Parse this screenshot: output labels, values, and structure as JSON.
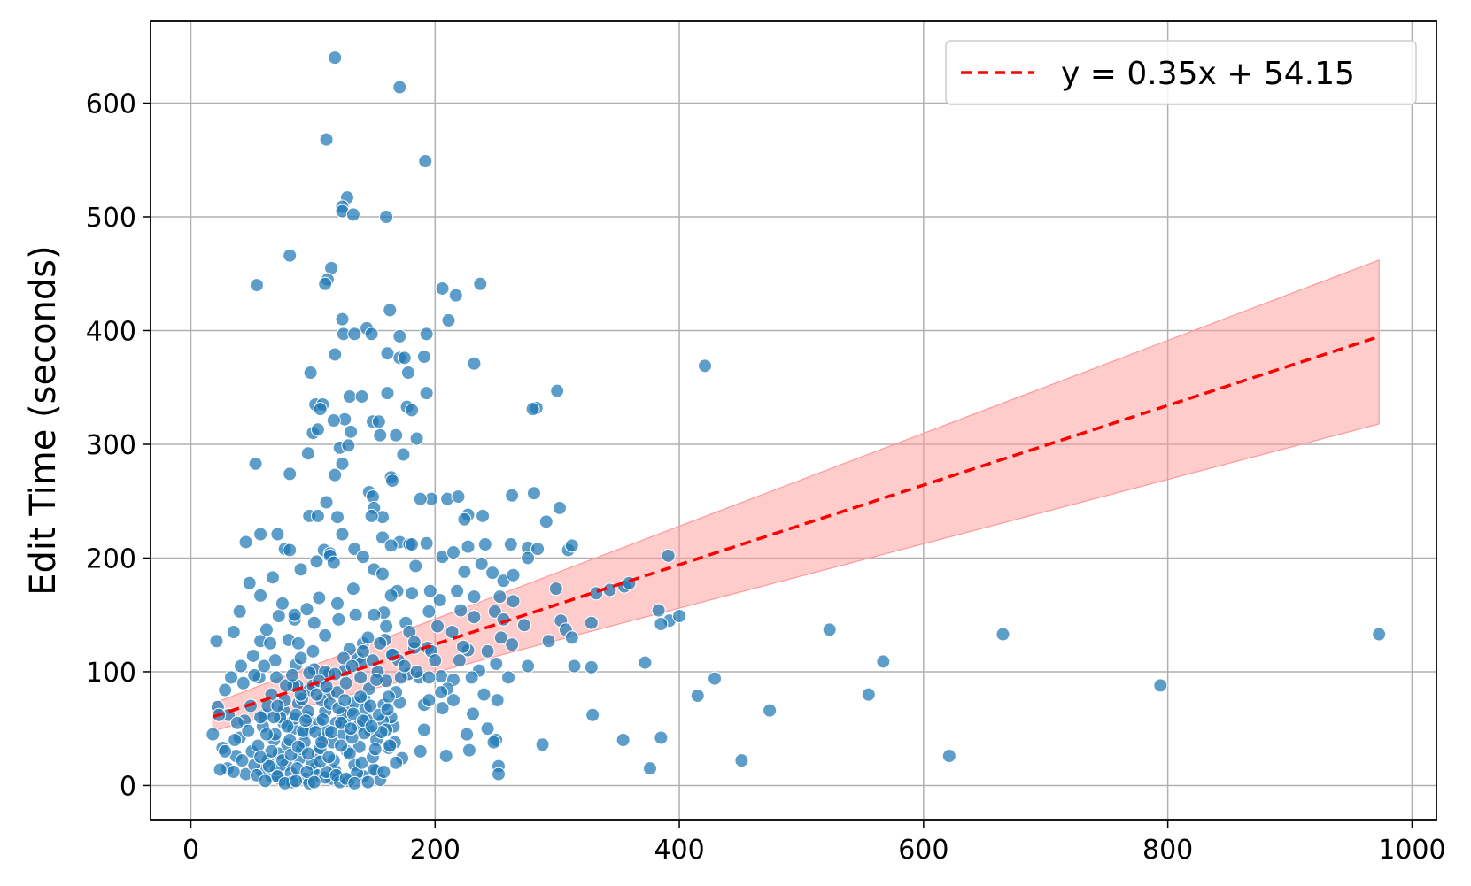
{
  "chart_data": {
    "type": "scatter",
    "title": "",
    "xlabel": "",
    "ylabel": "Edit Time (seconds)",
    "xlim": [
      -33,
      1020
    ],
    "ylim": [
      -30,
      672
    ],
    "xticks": [
      "0",
      "200",
      "400",
      "600",
      "800",
      "1000"
    ],
    "yticks": [
      "0",
      "100",
      "200",
      "300",
      "400",
      "500",
      "600"
    ],
    "grid": true,
    "legend_position": "top-right",
    "colors": {
      "points": "#1f77b4",
      "fit_line": "#ff0000",
      "band": "#ff9999"
    },
    "fit": {
      "label": "y = 0.35x + 54.15",
      "slope": 0.35,
      "intercept": 54.15,
      "x_range": [
        18,
        973
      ],
      "band_lower": [
        [
          18,
          48
        ],
        [
          973,
          318
        ]
      ],
      "band_upper": [
        [
          18,
          72
        ],
        [
          973,
          462
        ]
      ]
    },
    "points": [
      [
        118,
        640
      ],
      [
        171,
        614
      ],
      [
        111,
        568
      ],
      [
        192,
        549
      ],
      [
        128,
        517
      ],
      [
        124,
        509
      ],
      [
        124,
        505
      ],
      [
        133,
        502
      ],
      [
        160,
        500
      ],
      [
        81,
        466
      ],
      [
        115,
        455
      ],
      [
        112,
        445
      ],
      [
        110,
        441
      ],
      [
        54,
        440
      ],
      [
        206,
        437
      ],
      [
        237,
        441
      ],
      [
        217,
        431
      ],
      [
        163,
        418
      ],
      [
        124,
        410
      ],
      [
        211,
        409
      ],
      [
        144,
        402
      ],
      [
        125,
        397
      ],
      [
        134,
        397
      ],
      [
        148,
        397
      ],
      [
        193,
        397
      ],
      [
        171,
        395
      ],
      [
        161,
        380
      ],
      [
        118,
        379
      ],
      [
        171,
        376
      ],
      [
        175,
        376
      ],
      [
        191,
        377
      ],
      [
        232,
        371
      ],
      [
        421,
        369
      ],
      [
        98,
        363
      ],
      [
        178,
        363
      ],
      [
        161,
        345
      ],
      [
        193,
        345
      ],
      [
        300,
        347
      ],
      [
        130,
        342
      ],
      [
        140,
        342
      ],
      [
        102,
        335
      ],
      [
        108,
        335
      ],
      [
        177,
        333
      ],
      [
        283,
        332
      ],
      [
        280,
        331
      ],
      [
        181,
        330
      ],
      [
        106,
        331
      ],
      [
        126,
        322
      ],
      [
        149,
        320
      ],
      [
        117,
        321
      ],
      [
        154,
        320
      ],
      [
        131,
        311
      ],
      [
        100,
        310
      ],
      [
        104,
        313
      ],
      [
        168,
        308
      ],
      [
        155,
        308
      ],
      [
        185,
        305
      ],
      [
        122,
        297
      ],
      [
        129,
        299
      ],
      [
        96,
        292
      ],
      [
        174,
        291
      ],
      [
        124,
        283
      ],
      [
        53,
        283
      ],
      [
        81,
        274
      ],
      [
        118,
        273
      ],
      [
        164,
        271
      ],
      [
        165,
        268
      ],
      [
        146,
        258
      ],
      [
        197,
        252
      ],
      [
        210,
        252
      ],
      [
        219,
        254
      ],
      [
        188,
        252
      ],
      [
        263,
        255
      ],
      [
        281,
        257
      ],
      [
        149,
        254
      ],
      [
        111,
        249
      ],
      [
        150,
        244
      ],
      [
        302,
        244
      ],
      [
        97,
        237
      ],
      [
        104,
        237
      ],
      [
        120,
        236
      ],
      [
        157,
        236
      ],
      [
        227,
        238
      ],
      [
        239,
        237
      ],
      [
        148,
        237
      ],
      [
        224,
        234
      ],
      [
        291,
        232
      ],
      [
        57,
        221
      ],
      [
        71,
        221
      ],
      [
        124,
        221
      ],
      [
        157,
        218
      ],
      [
        171,
        214
      ],
      [
        179,
        212
      ],
      [
        193,
        213
      ],
      [
        227,
        210
      ],
      [
        241,
        212
      ],
      [
        262,
        212
      ],
      [
        276,
        209
      ],
      [
        284,
        208
      ],
      [
        309,
        207
      ],
      [
        312,
        211
      ],
      [
        45,
        214
      ],
      [
        77,
        208
      ],
      [
        81,
        207
      ],
      [
        109,
        207
      ],
      [
        114,
        204
      ],
      [
        134,
        208
      ],
      [
        164,
        211
      ],
      [
        181,
        212
      ],
      [
        103,
        197
      ],
      [
        114,
        202
      ],
      [
        117,
        196
      ],
      [
        141,
        201
      ],
      [
        184,
        193
      ],
      [
        206,
        201
      ],
      [
        215,
        205
      ],
      [
        224,
        188
      ],
      [
        238,
        195
      ],
      [
        247,
        187
      ],
      [
        256,
        180
      ],
      [
        264,
        185
      ],
      [
        276,
        200
      ],
      [
        391,
        202
      ],
      [
        48,
        178
      ],
      [
        67,
        183
      ],
      [
        90,
        190
      ],
      [
        150,
        190
      ],
      [
        157,
        186
      ],
      [
        169,
        171
      ],
      [
        181,
        169
      ],
      [
        196,
        171
      ],
      [
        204,
        163
      ],
      [
        218,
        171
      ],
      [
        232,
        166
      ],
      [
        253,
        166
      ],
      [
        264,
        162
      ],
      [
        299,
        173
      ],
      [
        332,
        169
      ],
      [
        343,
        172
      ],
      [
        355,
        175
      ],
      [
        359,
        178
      ],
      [
        133,
        173
      ],
      [
        164,
        167
      ],
      [
        57,
        167
      ],
      [
        40,
        153
      ],
      [
        72,
        149
      ],
      [
        85,
        146
      ],
      [
        101,
        143
      ],
      [
        121,
        146
      ],
      [
        158,
        152
      ],
      [
        176,
        143
      ],
      [
        195,
        153
      ],
      [
        221,
        154
      ],
      [
        249,
        153
      ],
      [
        256,
        146
      ],
      [
        273,
        141
      ],
      [
        293,
        127
      ],
      [
        303,
        145
      ],
      [
        307,
        137
      ],
      [
        383,
        154
      ],
      [
        392,
        145
      ],
      [
        400,
        149
      ],
      [
        312,
        130
      ],
      [
        328,
        143
      ],
      [
        21,
        127
      ],
      [
        35,
        135
      ],
      [
        57,
        127
      ],
      [
        62,
        137
      ],
      [
        80,
        128
      ],
      [
        88,
        125
      ],
      [
        110,
        132
      ],
      [
        141,
        125
      ],
      [
        159,
        128
      ],
      [
        183,
        121
      ],
      [
        194,
        121
      ],
      [
        227,
        119
      ],
      [
        254,
        130
      ],
      [
        263,
        124
      ],
      [
        372,
        108
      ],
      [
        385,
        142
      ],
      [
        523,
        137
      ],
      [
        567,
        109
      ],
      [
        665,
        133
      ],
      [
        973,
        133
      ],
      [
        51,
        114
      ],
      [
        69,
        110
      ],
      [
        86,
        106
      ],
      [
        101,
        102
      ],
      [
        126,
        101
      ],
      [
        137,
        112
      ],
      [
        165,
        115
      ],
      [
        187,
        95
      ],
      [
        205,
        96
      ],
      [
        215,
        93
      ],
      [
        236,
        101
      ],
      [
        250,
        107
      ],
      [
        276,
        105
      ],
      [
        314,
        105
      ],
      [
        328,
        104
      ],
      [
        429,
        94
      ],
      [
        555,
        80
      ],
      [
        415,
        79
      ],
      [
        474,
        66
      ],
      [
        794,
        88
      ],
      [
        28,
        84
      ],
      [
        43,
        90
      ],
      [
        56,
        95
      ],
      [
        66,
        80
      ],
      [
        87,
        88
      ],
      [
        97,
        84
      ],
      [
        113,
        81
      ],
      [
        142,
        76
      ],
      [
        171,
        73
      ],
      [
        191,
        71
      ],
      [
        206,
        68
      ],
      [
        231,
        63
      ],
      [
        251,
        75
      ],
      [
        329,
        62
      ],
      [
        22,
        69
      ],
      [
        31,
        62
      ],
      [
        44,
        57
      ],
      [
        60,
        62
      ],
      [
        76,
        55
      ],
      [
        84,
        50
      ],
      [
        93,
        46
      ],
      [
        109,
        42
      ],
      [
        126,
        56
      ],
      [
        147,
        48
      ],
      [
        166,
        52
      ],
      [
        191,
        49
      ],
      [
        226,
        45
      ],
      [
        243,
        50
      ],
      [
        250,
        40
      ],
      [
        354,
        40
      ],
      [
        385,
        42
      ],
      [
        18,
        45
      ],
      [
        26,
        33
      ],
      [
        37,
        26
      ],
      [
        50,
        30
      ],
      [
        63,
        22
      ],
      [
        78,
        18
      ],
      [
        89,
        24
      ],
      [
        102,
        15
      ],
      [
        118,
        13
      ],
      [
        134,
        18
      ],
      [
        152,
        13
      ],
      [
        173,
        24
      ],
      [
        188,
        30
      ],
      [
        209,
        26
      ],
      [
        228,
        31
      ],
      [
        248,
        38
      ],
      [
        252,
        17
      ],
      [
        252,
        10
      ],
      [
        288,
        36
      ],
      [
        376,
        15
      ],
      [
        451,
        22
      ],
      [
        621,
        26
      ],
      [
        30,
        15
      ],
      [
        45,
        10
      ],
      [
        58,
        13
      ],
      [
        66,
        8
      ],
      [
        74,
        5
      ],
      [
        82,
        11
      ],
      [
        94,
        6
      ],
      [
        103,
        9
      ],
      [
        115,
        6
      ],
      [
        129,
        4
      ],
      [
        141,
        8
      ],
      [
        155,
        5
      ],
      [
        35,
        12
      ],
      [
        52,
        18
      ],
      [
        70,
        14
      ],
      [
        83,
        3
      ],
      [
        97,
        2
      ],
      [
        110,
        7
      ],
      [
        122,
        3
      ],
      [
        136,
        11
      ],
      [
        150,
        14
      ],
      [
        24,
        14
      ],
      [
        40,
        42
      ],
      [
        55,
        35
      ],
      [
        68,
        40
      ],
      [
        72,
        28
      ],
      [
        79,
        36
      ],
      [
        85,
        59
      ],
      [
        91,
        32
      ],
      [
        98,
        51
      ],
      [
        104,
        28
      ],
      [
        110,
        65
      ],
      [
        116,
        38
      ],
      [
        119,
        55
      ],
      [
        125,
        45
      ],
      [
        131,
        66
      ],
      [
        138,
        34
      ],
      [
        144,
        58
      ],
      [
        152,
        40
      ],
      [
        158,
        71
      ],
      [
        63,
        70
      ],
      [
        70,
        95
      ],
      [
        76,
        66
      ],
      [
        88,
        72
      ],
      [
        95,
        60
      ],
      [
        100,
        88
      ],
      [
        107,
        75
      ],
      [
        113,
        98
      ],
      [
        120,
        82
      ],
      [
        127,
        90
      ],
      [
        134,
        73
      ],
      [
        139,
        95
      ],
      [
        146,
        85
      ],
      [
        153,
        100
      ],
      [
        160,
        92
      ],
      [
        164,
        60
      ],
      [
        168,
        82
      ],
      [
        178,
        98
      ],
      [
        69,
        45
      ],
      [
        81,
        40
      ],
      [
        93,
        38
      ],
      [
        105,
        55
      ],
      [
        117,
        22
      ],
      [
        128,
        30
      ],
      [
        140,
        20
      ],
      [
        149,
        25
      ],
      [
        162,
        33
      ],
      [
        59,
        52
      ],
      [
        66,
        30
      ],
      [
        73,
        60
      ],
      [
        87,
        15
      ],
      [
        92,
        48
      ],
      [
        99,
        19
      ],
      [
        106,
        33
      ],
      [
        112,
        48
      ],
      [
        124,
        63
      ],
      [
        130,
        28
      ],
      [
        137,
        52
      ],
      [
        143,
        68
      ],
      [
        151,
        32
      ],
      [
        157,
        57
      ],
      [
        162,
        78
      ],
      [
        170,
        110
      ],
      [
        172,
        95
      ],
      [
        179,
        135
      ],
      [
        183,
        126
      ],
      [
        197,
        118
      ],
      [
        202,
        140
      ],
      [
        214,
        135
      ],
      [
        223,
        122
      ],
      [
        232,
        148
      ],
      [
        243,
        118
      ],
      [
        200,
        110
      ],
      [
        160,
        140
      ],
      [
        145,
        130
      ],
      [
        150,
        150
      ],
      [
        135,
        150
      ],
      [
        120,
        160
      ],
      [
        105,
        165
      ],
      [
        95,
        155
      ],
      [
        85,
        150
      ],
      [
        75,
        160
      ],
      [
        65,
        125
      ],
      [
        60,
        105
      ],
      [
        90,
        112
      ],
      [
        100,
        118
      ],
      [
        110,
        100
      ],
      [
        130,
        120
      ],
      [
        140,
        108
      ],
      [
        155,
        125
      ],
      [
        165,
        115
      ],
      [
        175,
        105
      ],
      [
        185,
        100
      ],
      [
        195,
        95
      ],
      [
        210,
        85
      ],
      [
        220,
        110
      ],
      [
        230,
        95
      ],
      [
        195,
        75
      ],
      [
        205,
        82
      ],
      [
        215,
        75
      ],
      [
        240,
        80
      ],
      [
        260,
        95
      ],
      [
        62,
        45
      ],
      [
        68,
        60
      ],
      [
        77,
        75
      ],
      [
        84,
        88
      ],
      [
        91,
        76
      ],
      [
        96,
        65
      ],
      [
        103,
        80
      ],
      [
        108,
        58
      ],
      [
        114,
        72
      ],
      [
        121,
        68
      ],
      [
        126,
        75
      ],
      [
        133,
        63
      ],
      [
        139,
        78
      ],
      [
        147,
        70
      ],
      [
        154,
        62
      ],
      [
        160,
        49
      ],
      [
        167,
        38
      ],
      [
        71,
        8
      ],
      [
        77,
        2
      ],
      [
        86,
        4
      ],
      [
        95,
        12
      ],
      [
        101,
        3
      ],
      [
        111,
        12
      ],
      [
        119,
        9
      ],
      [
        127,
        6
      ],
      [
        134,
        2
      ],
      [
        145,
        3
      ],
      [
        158,
        12
      ],
      [
        168,
        20
      ],
      [
        64,
        17
      ],
      [
        75,
        22
      ],
      [
        82,
        27
      ],
      [
        88,
        34
      ],
      [
        96,
        28
      ],
      [
        106,
        21
      ],
      [
        113,
        25
      ],
      [
        123,
        35
      ],
      [
        132,
        42
      ],
      [
        142,
        46
      ],
      [
        156,
        47
      ],
      [
        161,
        67
      ],
      [
        79,
        52
      ],
      [
        86,
        62
      ],
      [
        94,
        57
      ],
      [
        102,
        47
      ],
      [
        107,
        38
      ],
      [
        115,
        47
      ],
      [
        123,
        55
      ],
      [
        131,
        50
      ],
      [
        141,
        57
      ],
      [
        148,
        52
      ],
      [
        163,
        35
      ],
      [
        71,
        70
      ],
      [
        78,
        88
      ],
      [
        83,
        97
      ],
      [
        90,
        80
      ],
      [
        97,
        99
      ],
      [
        105,
        92
      ],
      [
        111,
        87
      ],
      [
        118,
        98
      ],
      [
        125,
        112
      ],
      [
        132,
        105
      ],
      [
        141,
        118
      ],
      [
        149,
        110
      ],
      [
        152,
        93
      ],
      [
        57,
        60
      ],
      [
        47,
        48
      ],
      [
        38,
        55
      ],
      [
        28,
        30
      ],
      [
        23,
        62
      ],
      [
        36,
        40
      ],
      [
        42,
        22
      ],
      [
        54,
        9
      ],
      [
        61,
        4
      ],
      [
        57,
        25
      ],
      [
        49,
        70
      ],
      [
        33,
        95
      ],
      [
        41,
        105
      ],
      [
        52,
        97
      ]
    ]
  }
}
